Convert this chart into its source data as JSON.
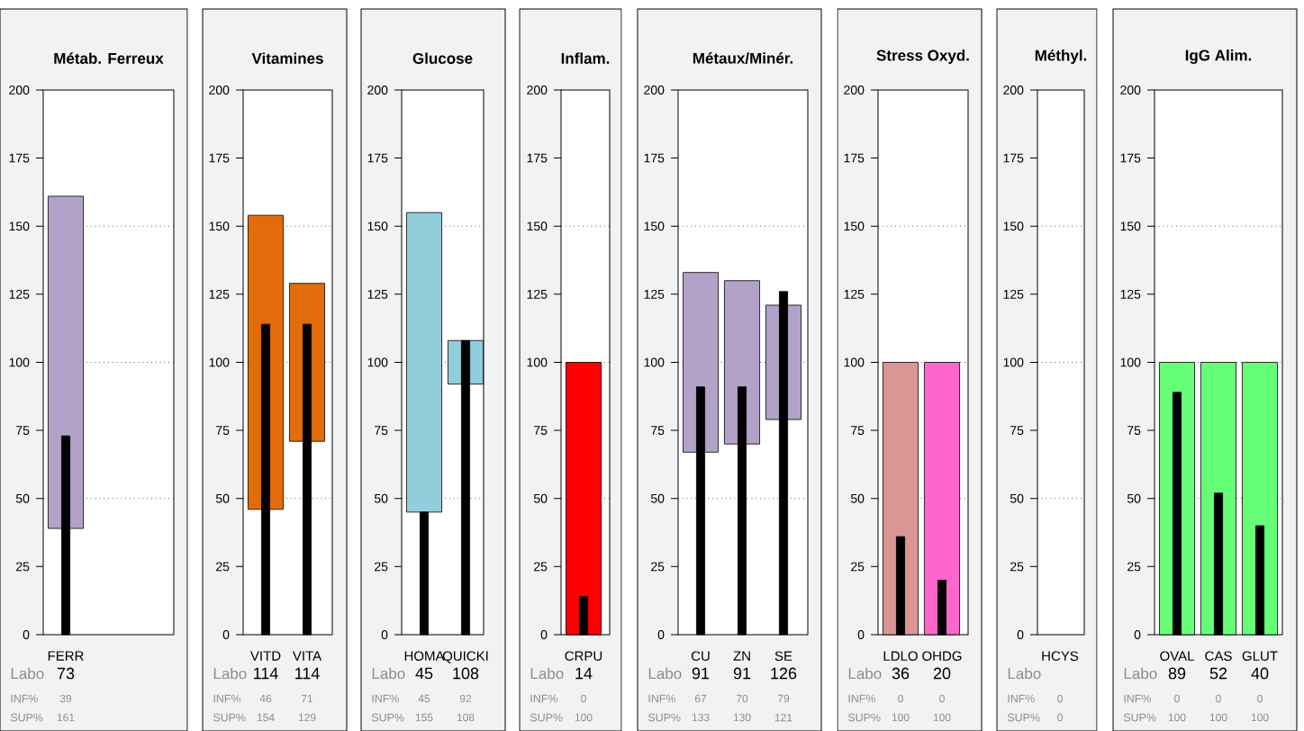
{
  "chart_data": [
    {
      "type": "bar",
      "title": "Métab. Ferreux",
      "categories": [
        "FERR"
      ],
      "ylim": [
        0,
        200
      ],
      "yticks": [
        0,
        25,
        50,
        75,
        100,
        125,
        150,
        175,
        200
      ],
      "ref_lines": [
        {
          "axis": "y",
          "value": 50,
          "line_style": "dotted"
        },
        {
          "axis": "y",
          "value": 100,
          "line_style": "dotted"
        },
        {
          "axis": "y",
          "value": 150,
          "line_style": "dotted"
        }
      ],
      "series": [
        {
          "base": [
            39
          ],
          "values": [
            122
          ],
          "colors": [
            "#b3a2c7"
          ]
        },
        {
          "color": "#000000",
          "values": [
            73
          ],
          "value_labels": [
            "73"
          ]
        }
      ],
      "annotations": [
        "Labo",
        "INF%",
        "SUP%",
        "39",
        "161"
      ]
    },
    {
      "type": "bar",
      "title": "Vitamines",
      "categories": [
        "VITD",
        "VITA"
      ],
      "ylim": [
        0,
        200
      ],
      "yticks": [
        0,
        25,
        50,
        75,
        100,
        125,
        150,
        175,
        200
      ],
      "ref_lines": [
        {
          "axis": "y",
          "value": 50,
          "line_style": "dotted"
        },
        {
          "axis": "y",
          "value": 100,
          "line_style": "dotted"
        },
        {
          "axis": "y",
          "value": 150,
          "line_style": "dotted"
        }
      ],
      "series": [
        {
          "base": [
            46,
            71
          ],
          "values": [
            108,
            58
          ],
          "colors": [
            "#e36c0a",
            "#e36c0a"
          ]
        },
        {
          "color": "#000000",
          "values": [
            114,
            114
          ],
          "value_labels": [
            "114",
            "114"
          ]
        }
      ],
      "annotations": [
        "Labo",
        "INF%",
        "SUP%",
        "46",
        "154",
        "71",
        "129"
      ]
    },
    {
      "type": "bar",
      "title": "Glucose",
      "categories": [
        "HOMA",
        "QUICKI"
      ],
      "ylim": [
        0,
        200
      ],
      "yticks": [
        0,
        25,
        50,
        75,
        100,
        125,
        150,
        175,
        200
      ],
      "ref_lines": [
        {
          "axis": "y",
          "value": 50,
          "line_style": "dotted"
        },
        {
          "axis": "y",
          "value": 100,
          "line_style": "dotted"
        },
        {
          "axis": "y",
          "value": 150,
          "line_style": "dotted"
        }
      ],
      "series": [
        {
          "base": [
            45,
            92
          ],
          "values": [
            110,
            16
          ],
          "colors": [
            "#92cddc",
            "#92cddc"
          ]
        },
        {
          "color": "#000000",
          "values": [
            45,
            108
          ],
          "value_labels": [
            "45",
            "108"
          ]
        }
      ],
      "annotations": [
        "Labo",
        "INF%",
        "SUP%",
        "45",
        "155",
        "92",
        "108"
      ]
    },
    {
      "type": "bar",
      "title": "Inflam.",
      "categories": [
        "CRPU"
      ],
      "ylim": [
        0,
        200
      ],
      "yticks": [
        0,
        25,
        50,
        75,
        100,
        125,
        150,
        175,
        200
      ],
      "ref_lines": [
        {
          "axis": "y",
          "value": 50,
          "line_style": "dotted"
        },
        {
          "axis": "y",
          "value": 100,
          "line_style": "dotted"
        },
        {
          "axis": "y",
          "value": 150,
          "line_style": "dotted"
        }
      ],
      "series": [
        {
          "base": [
            0
          ],
          "values": [
            100
          ],
          "colors": [
            "#ff0000"
          ]
        },
        {
          "color": "#000000",
          "values": [
            14
          ],
          "value_labels": [
            "14"
          ]
        }
      ],
      "annotations": [
        "Labo",
        "INF%",
        "SUP%",
        "0",
        "100"
      ]
    },
    {
      "type": "bar",
      "title": "Métaux/Minér.",
      "categories": [
        "CU",
        "ZN",
        "SE"
      ],
      "ylim": [
        0,
        200
      ],
      "yticks": [
        0,
        25,
        50,
        75,
        100,
        125,
        150,
        175,
        200
      ],
      "ref_lines": [
        {
          "axis": "y",
          "value": 50,
          "line_style": "dotted"
        },
        {
          "axis": "y",
          "value": 100,
          "line_style": "dotted"
        },
        {
          "axis": "y",
          "value": 150,
          "line_style": "dotted"
        }
      ],
      "series": [
        {
          "base": [
            67,
            70,
            79
          ],
          "values": [
            66,
            60,
            42
          ],
          "colors": [
            "#b3a2c7",
            "#b3a2c7",
            "#b3a2c7"
          ]
        },
        {
          "color": "#000000",
          "values": [
            91,
            91,
            126
          ],
          "value_labels": [
            "91",
            "91",
            "126"
          ]
        }
      ],
      "annotations": [
        "Labo",
        "INF%",
        "SUP%",
        "67",
        "133",
        "70",
        "130",
        "79",
        "121"
      ]
    },
    {
      "type": "bar",
      "title": "Stress Oxyd.",
      "categories": [
        "LDLO",
        "OHDG"
      ],
      "ylim": [
        0,
        200
      ],
      "yticks": [
        0,
        25,
        50,
        75,
        100,
        125,
        150,
        175,
        200
      ],
      "ref_lines": [
        {
          "axis": "y",
          "value": 50,
          "line_style": "dotted"
        },
        {
          "axis": "y",
          "value": 100,
          "line_style": "dotted"
        },
        {
          "axis": "y",
          "value": 150,
          "line_style": "dotted"
        }
      ],
      "series": [
        {
          "base": [
            0,
            0
          ],
          "values": [
            100,
            100
          ],
          "colors": [
            "#d99694",
            "#ff66cc"
          ]
        },
        {
          "color": "#000000",
          "values": [
            36,
            20
          ],
          "value_labels": [
            "36",
            "20"
          ]
        }
      ],
      "annotations": [
        "Labo",
        "INF%",
        "SUP%",
        "0",
        "100",
        "0",
        "100"
      ]
    },
    {
      "type": "bar",
      "title": "Méthyl.",
      "categories": [
        "HCYS"
      ],
      "ylim": [
        0,
        200
      ],
      "yticks": [
        0,
        25,
        50,
        75,
        100,
        125,
        150,
        175,
        200
      ],
      "ref_lines": [
        {
          "axis": "y",
          "value": 50,
          "line_style": "dotted"
        },
        {
          "axis": "y",
          "value": 100,
          "line_style": "dotted"
        },
        {
          "axis": "y",
          "value": 150,
          "line_style": "dotted"
        }
      ],
      "series": [
        {
          "base": [
            null
          ],
          "values": [
            null
          ]
        },
        {
          "values": [
            null
          ],
          "value_labels": [
            null
          ]
        }
      ],
      "annotations": [
        "Labo",
        "INF%",
        "SUP%",
        "0",
        "0"
      ]
    },
    {
      "type": "bar",
      "title": "IgG Alim.",
      "categories": [
        "OVAL",
        "CAS",
        "GLUT"
      ],
      "ylim": [
        0,
        200
      ],
      "yticks": [
        0,
        25,
        50,
        75,
        100,
        125,
        150,
        175,
        200
      ],
      "ref_lines": [
        {
          "axis": "y",
          "value": 50,
          "line_style": "dotted"
        },
        {
          "axis": "y",
          "value": 100,
          "line_style": "dotted"
        },
        {
          "axis": "y",
          "value": 150,
          "line_style": "dotted"
        }
      ],
      "series": [
        {
          "base": [
            0,
            0,
            0
          ],
          "values": [
            100,
            100,
            100
          ],
          "colors": [
            "#66ff77",
            "#66ff77",
            "#66ff77"
          ]
        },
        {
          "color": "#000000",
          "values": [
            89,
            52,
            40
          ],
          "value_labels": [
            "89",
            "52",
            "40"
          ]
        }
      ],
      "annotations": [
        "Labo",
        "INF%",
        "SUP%",
        "0",
        "100",
        "0",
        "100",
        "0",
        "100"
      ]
    }
  ]
}
